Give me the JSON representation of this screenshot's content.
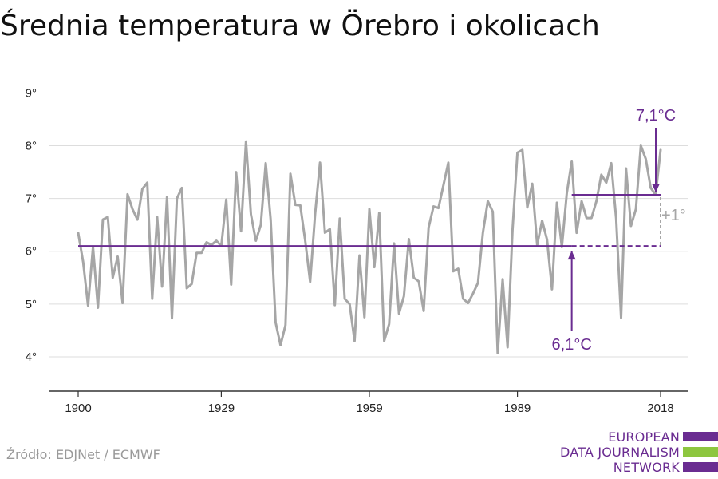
{
  "title": "Średnia temperatura w Örebro i okolicach",
  "source": "Źródło: EDJNet / ECMWF",
  "logo": {
    "lines": [
      "EUROPEAN",
      "DATA JOURNALISM",
      "NETWORK"
    ],
    "colors": [
      "#6a2c91",
      "#8dc63f",
      "#6a2c91"
    ]
  },
  "colors": {
    "series": "#a6a6a6",
    "reference": "#6a2c91",
    "delta": "#a6a6a6",
    "grid": "#dddddd",
    "axis": "#333333"
  },
  "chart_data": {
    "type": "line",
    "title": "Średnia temperatura w Örebro i okolicach",
    "xlabel": "",
    "ylabel": "",
    "xlim": [
      1900,
      2018
    ],
    "ylim": [
      3.5,
      9.4
    ],
    "yticks": [
      4,
      5,
      6,
      7,
      8,
      9
    ],
    "ytick_labels": [
      "4°",
      "5°",
      "6°",
      "7°",
      "8°",
      "9°"
    ],
    "xticks": [
      1900,
      1929,
      1959,
      1989,
      2018
    ],
    "xtick_labels": [
      "1900",
      "1929",
      "1959",
      "1989",
      "2018"
    ],
    "grid": true,
    "x": [
      1900,
      1901,
      1902,
      1903,
      1904,
      1905,
      1906,
      1907,
      1908,
      1909,
      1910,
      1911,
      1912,
      1913,
      1914,
      1915,
      1916,
      1917,
      1918,
      1919,
      1920,
      1921,
      1922,
      1923,
      1924,
      1925,
      1926,
      1927,
      1928,
      1929,
      1930,
      1931,
      1932,
      1933,
      1934,
      1935,
      1936,
      1937,
      1938,
      1939,
      1940,
      1941,
      1942,
      1943,
      1944,
      1945,
      1946,
      1947,
      1948,
      1949,
      1950,
      1951,
      1952,
      1953,
      1954,
      1955,
      1956,
      1957,
      1958,
      1959,
      1960,
      1961,
      1962,
      1963,
      1964,
      1965,
      1966,
      1967,
      1968,
      1969,
      1970,
      1971,
      1972,
      1973,
      1974,
      1975,
      1976,
      1977,
      1978,
      1979,
      1980,
      1981,
      1982,
      1983,
      1984,
      1985,
      1986,
      1987,
      1988,
      1989,
      1990,
      1991,
      1992,
      1993,
      1994,
      1995,
      1996,
      1997,
      1998,
      1999,
      2000,
      2001,
      2002,
      2003,
      2004,
      2005,
      2006,
      2007,
      2008,
      2009,
      2010,
      2011,
      2012,
      2013,
      2014,
      2015,
      2016,
      2017,
      2018
    ],
    "series": [
      {
        "values": [
          6.35,
          5.8,
          4.97,
          6.08,
          4.93,
          6.6,
          6.65,
          5.5,
          5.9,
          5.02,
          7.08,
          6.8,
          6.6,
          7.18,
          7.3,
          5.1,
          6.65,
          5.33,
          7.03,
          4.73,
          7.0,
          7.2,
          5.3,
          5.38,
          5.97,
          5.97,
          6.17,
          6.12,
          6.2,
          6.1,
          6.98,
          5.37,
          7.5,
          6.38,
          8.08,
          6.7,
          6.2,
          6.5,
          7.67,
          6.6,
          4.65,
          4.22,
          4.6,
          7.47,
          6.88,
          6.87,
          6.2,
          5.42,
          6.7,
          7.68,
          6.35,
          6.42,
          4.98,
          6.62,
          5.1,
          5.0,
          4.3,
          5.92,
          4.75,
          6.8,
          5.7,
          6.73,
          4.3,
          4.62,
          6.15,
          4.82,
          5.15,
          6.23,
          5.5,
          5.43,
          4.87,
          6.45,
          6.85,
          6.82,
          7.25,
          7.68,
          5.62,
          5.67,
          5.1,
          5.02,
          5.2,
          5.4,
          6.35,
          6.95,
          6.75,
          4.07,
          5.47,
          4.18,
          6.4,
          7.87,
          7.92,
          6.83,
          7.28,
          6.12,
          6.58,
          6.22,
          5.28,
          6.92,
          6.08,
          7.1,
          7.7,
          6.35,
          6.95,
          6.63,
          6.63,
          6.95,
          7.45,
          7.3,
          7.67,
          6.62,
          4.74,
          7.57,
          6.48,
          6.8,
          8.0,
          7.75,
          7.2,
          7.07,
          7.92
        ]
      }
    ],
    "annotations": [
      {
        "label": "6,1°C",
        "value": 6.1,
        "from": 1900,
        "to": 2018
      },
      {
        "label": "7,1°C",
        "value": 7.07,
        "from": 2000,
        "to": 2018
      },
      {
        "label": "+1°"
      }
    ]
  }
}
